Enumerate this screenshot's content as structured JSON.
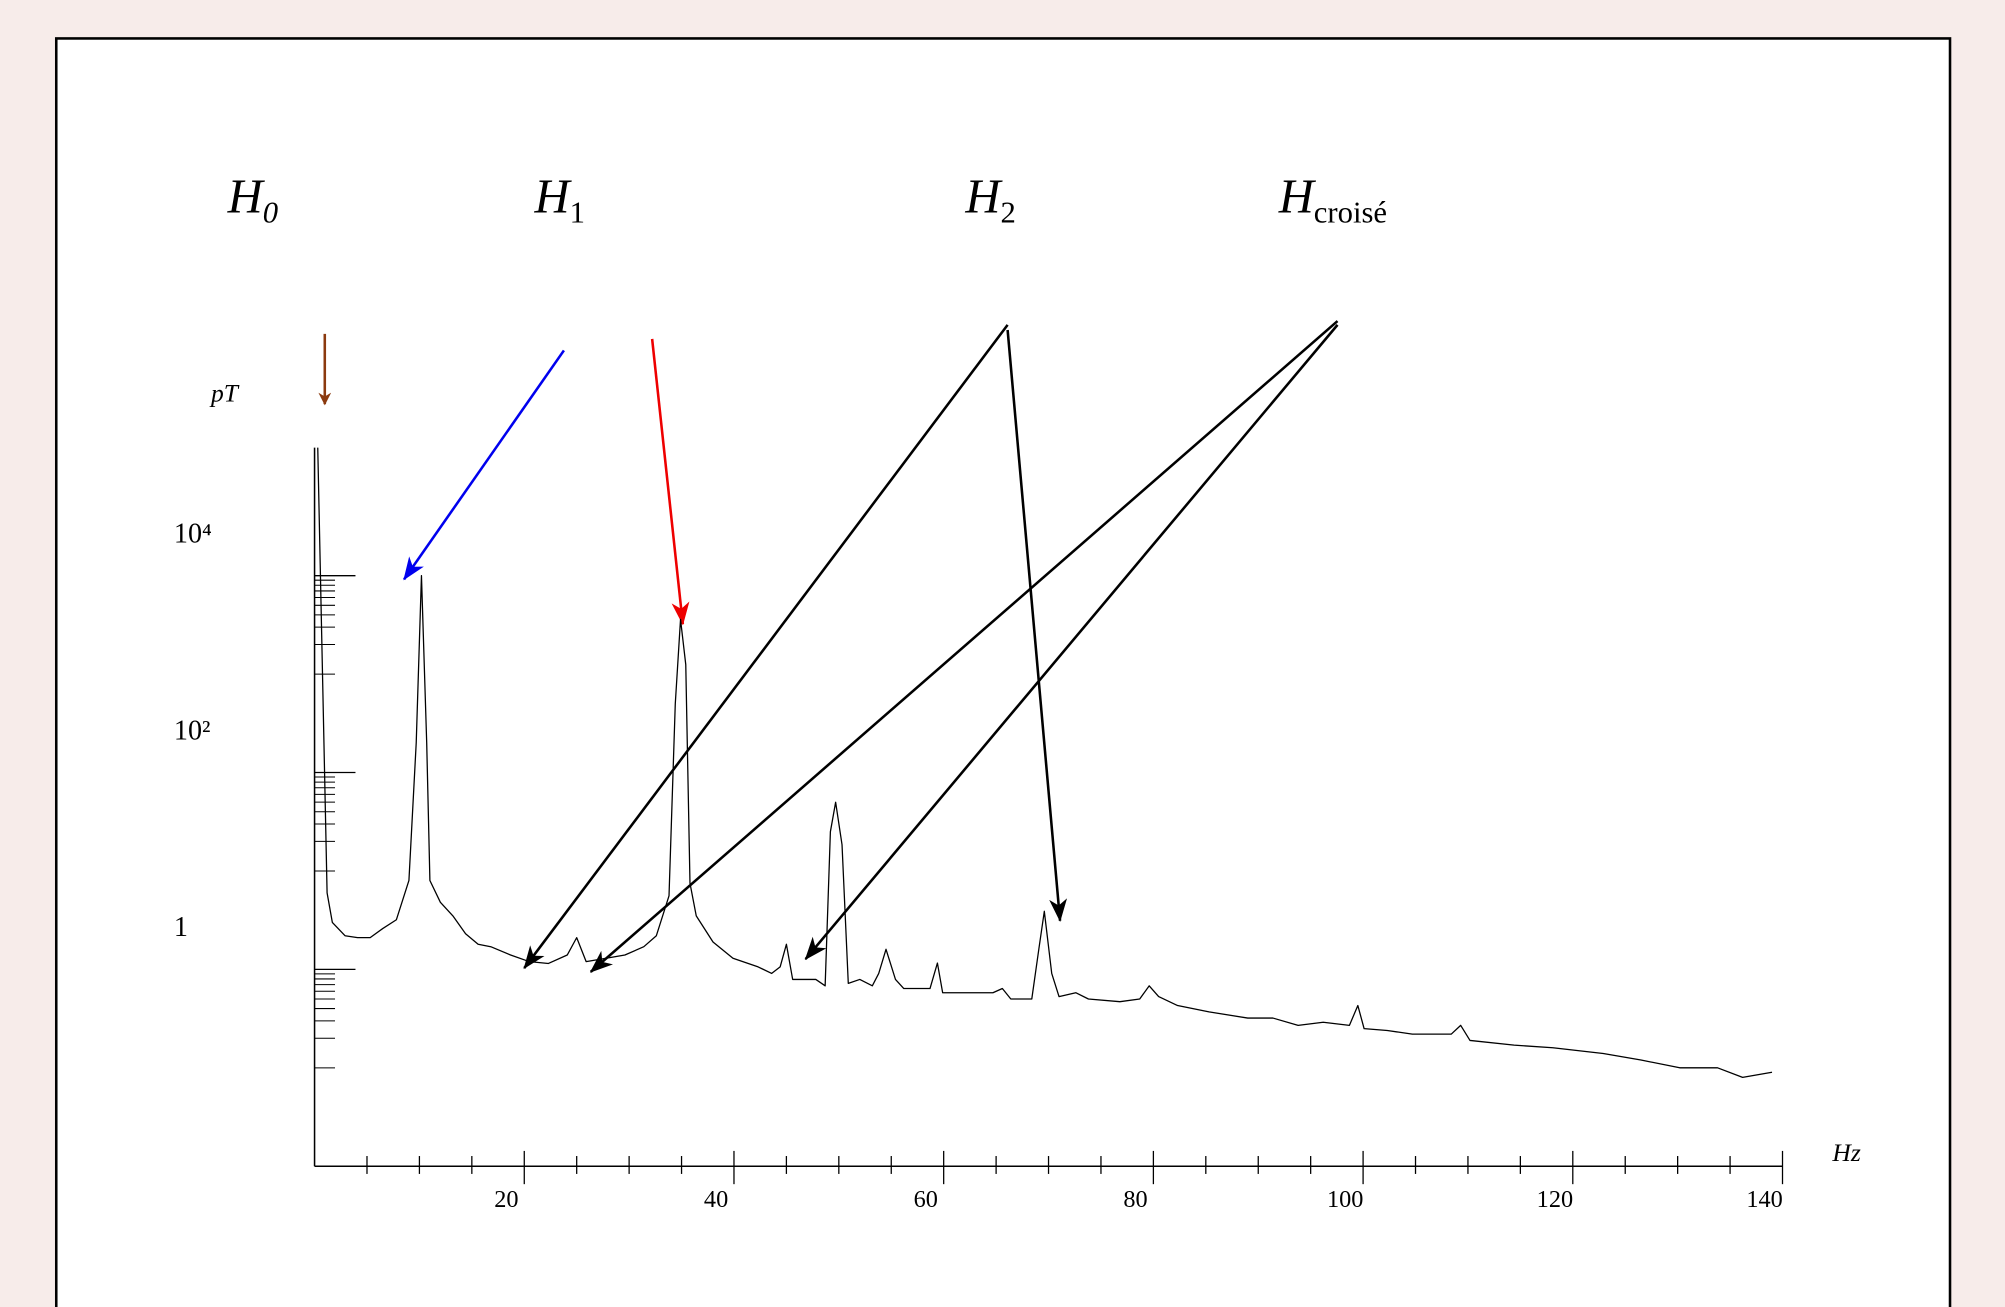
{
  "chart_data": {
    "type": "line",
    "color": "#000000",
    "ylog": true,
    "xlabel": "Hz",
    "ylabel": "pT",
    "xlim": [
      0,
      140
    ],
    "xticks": [
      20,
      40,
      60,
      80,
      100,
      120,
      140
    ],
    "xminorticks": [
      5,
      10,
      15,
      25,
      30,
      35,
      45,
      50,
      55,
      65,
      70,
      75,
      85,
      90,
      95,
      105,
      110,
      115,
      125,
      130,
      135
    ],
    "ylim": [
      0.01,
      200000
    ],
    "yticks": [
      1,
      {
        "value": 100,
        "label": "10²"
      },
      {
        "value": 10000,
        "label": "10⁴"
      }
    ],
    "yminorticks": [
      1000,
      2000,
      3000,
      4000,
      5000,
      6000,
      7000,
      8000,
      9000,
      10,
      20,
      30,
      40,
      50,
      60,
      70,
      80,
      90,
      0.1,
      0.2,
      0.3,
      0.4,
      0.5,
      0.6,
      0.7,
      0.8,
      0.9
    ],
    "annotations": [
      {
        "text": "H",
        "sub": "0",
        "color": "#8b3a0f"
      },
      {
        "text": "H",
        "sub": "1",
        "color": "#3333cc"
      },
      {
        "text": "H",
        "sub": "2",
        "color": "#000000"
      },
      {
        "text": "H",
        "sub": "croisé",
        "color": "#000000"
      }
    ],
    "x": [
      0.3,
      1.2,
      1.7,
      2.9,
      4.1,
      5.3,
      6.5,
      7.8,
      9,
      9.7,
      10.2,
      10.7,
      11,
      12,
      13.2,
      14.4,
      15.6,
      16.8,
      18.7,
      20.5,
      22.3,
      24.1,
      25,
      25.9,
      27.8,
      29.6,
      31.4,
      32.6,
      33.8,
      34.4,
      34.9,
      35.4,
      35.8,
      36.4,
      38,
      39.9,
      42.3,
      43.6,
      44.4,
      45,
      45.6,
      47.8,
      48.7,
      49.2,
      49.7,
      50.3,
      50.9,
      52,
      53.2,
      53.8,
      54.5,
      55.4,
      56.2,
      58.7,
      59.4,
      59.9,
      64.7,
      65.6,
      66.4,
      68.4,
      69.1,
      69.6,
      70.3,
      71,
      72.6,
      73.8,
      76.8,
      78.7,
      79.6,
      80.5,
      82.3,
      85.3,
      89,
      91.4,
      93.8,
      96.2,
      98.7,
      99.5,
      100.1,
      102.3,
      104.7,
      108.4,
      109.3,
      110.2,
      114.4,
      118.1,
      122.9,
      126.5,
      130.2,
      133.8,
      136.2,
      139
    ],
    "values": [
      200000,
      6,
      3,
      2.2,
      2.1,
      2.1,
      2.6,
      3.2,
      8,
      200,
      10000,
      200,
      8,
      4.8,
      3.5,
      2.3,
      1.8,
      1.7,
      1.4,
      1.2,
      1.15,
      1.4,
      2.1,
      1.2,
      1.3,
      1.4,
      1.7,
      2.2,
      5.6,
      500,
      3600,
      1250,
      7.5,
      3.5,
      1.9,
      1.3,
      1.06,
      0.91,
      1.06,
      1.8,
      0.79,
      0.79,
      0.68,
      25,
      50,
      18.5,
      0.72,
      0.79,
      0.68,
      0.91,
      1.6,
      0.79,
      0.64,
      0.64,
      1.16,
      0.58,
      0.58,
      0.64,
      0.5,
      0.5,
      1.67,
      3.9,
      0.91,
      0.53,
      0.58,
      0.5,
      0.47,
      0.5,
      0.68,
      0.53,
      0.43,
      0.37,
      0.32,
      0.32,
      0.27,
      0.29,
      0.27,
      0.43,
      0.25,
      0.24,
      0.22,
      0.22,
      0.27,
      0.19,
      0.17,
      0.16,
      0.14,
      0.12,
      0.1,
      0.1,
      0.08,
      0.09
    ]
  }
}
